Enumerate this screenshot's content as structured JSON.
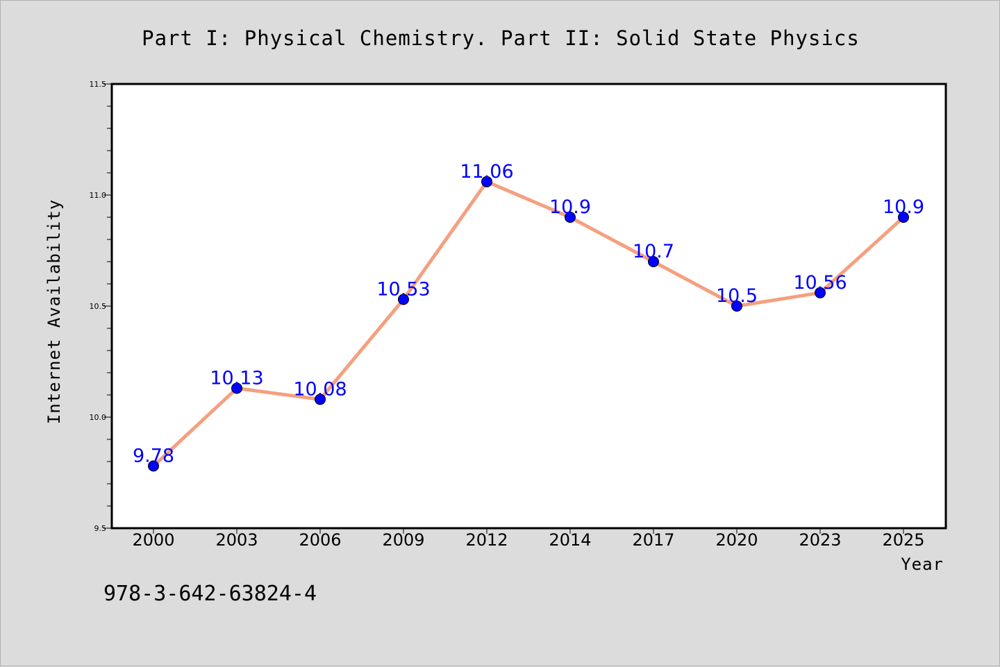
{
  "chart_data": {
    "type": "line",
    "title": "Part I: Physical Chemistry. Part II: Solid State Physics",
    "xlabel": "Year",
    "ylabel": "Internet Availability",
    "categories": [
      "2000",
      "2003",
      "2006",
      "2009",
      "2012",
      "2014",
      "2017",
      "2020",
      "2023",
      "2025"
    ],
    "series": [
      {
        "values": [
          9.78,
          10.13,
          10.08,
          10.53,
          11.06,
          10.9,
          10.7,
          10.5,
          10.56,
          10.9
        ],
        "data_labels": [
          "9.78",
          "10.13",
          "10.08",
          "10.53",
          "11.06",
          "10.9",
          "10.7",
          "10.5",
          "10.56",
          "10.9"
        ],
        "line_color": "#f4a080",
        "marker_color": "#0000ff"
      }
    ],
    "ylim": [
      9.5,
      11.5
    ],
    "yticks": [
      9.5,
      10.0,
      10.5,
      11.0,
      11.5
    ],
    "ytick_labels": [
      "9.5",
      "10.0",
      "10.5",
      "11.0",
      "11.5"
    ],
    "grid": false,
    "label_color": "#0000ff"
  },
  "footer": {
    "isbn": "978-3-642-63824-4"
  }
}
